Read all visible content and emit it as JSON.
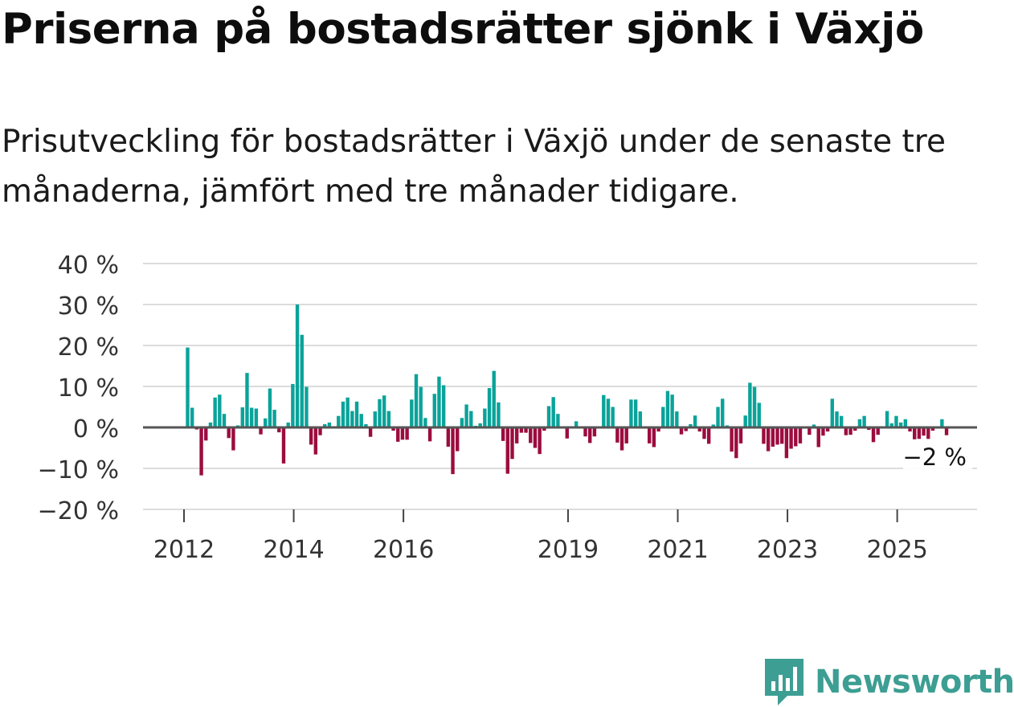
{
  "title": "Priserna på bostadsrätter sjönk i Växjö",
  "subtitle": "Prisutveckling för bostadsrätter i Växjö under de senaste tre månaderna, jämfört med tre månader tidigare.",
  "brand": {
    "name": "Newsworthy",
    "color": "#3d9e93"
  },
  "colors": {
    "positive": "#0aa39a",
    "negative": "#9c0c3e",
    "grid": "#dcdcdc",
    "zero": "#555555"
  },
  "chart_data": {
    "type": "bar",
    "title": "Priserna på bostadsrätter sjönk i Växjö",
    "xlabel": "",
    "ylabel": "",
    "ylim": [
      -20,
      40
    ],
    "y_ticks": [
      {
        "value": 40,
        "label": "40 %"
      },
      {
        "value": 30,
        "label": "30 %"
      },
      {
        "value": 20,
        "label": "20 %"
      },
      {
        "value": 10,
        "label": "10 %"
      },
      {
        "value": 0,
        "label": "0 %"
      },
      {
        "value": -10,
        "label": "−10 %"
      },
      {
        "value": -20,
        "label": "−20 %"
      }
    ],
    "x_start": "2012-01",
    "x_ticks": [
      {
        "index": 0,
        "label": "2012"
      },
      {
        "index": 24,
        "label": "2014"
      },
      {
        "index": 48,
        "label": "2016"
      },
      {
        "index": 84,
        "label": "2019"
      },
      {
        "index": 108,
        "label": "2021"
      },
      {
        "index": 132,
        "label": "2023"
      },
      {
        "index": 156,
        "label": "2025"
      }
    ],
    "last_value_label": "−2 %",
    "values": [
      19.5,
      4.8,
      -0.5,
      -11.7,
      -3.2,
      1.2,
      7.3,
      8.0,
      3.3,
      -2.6,
      -5.6,
      0.5,
      4.9,
      13.3,
      4.8,
      4.6,
      -1.7,
      2.2,
      9.5,
      4.3,
      -1.2,
      -8.8,
      1.2,
      10.6,
      30.0,
      22.6,
      9.9,
      -4.2,
      -6.6,
      -1.9,
      0.8,
      1.2,
      0.2,
      2.8,
      6.3,
      7.3,
      4.0,
      6.3,
      3.3,
      0.8,
      -2.3,
      3.9,
      6.9,
      7.8,
      4.0,
      -0.8,
      -3.5,
      -3.0,
      -3.0,
      6.8,
      13.0,
      9.9,
      2.3,
      -3.4,
      8.2,
      12.4,
      10.3,
      -4.7,
      -11.4,
      -5.8,
      2.3,
      5.6,
      4.0,
      0.4,
      1.0,
      4.6,
      9.6,
      13.8,
      6.1,
      -3.3,
      -11.3,
      -7.7,
      -3.9,
      -1.3,
      -1.3,
      -3.8,
      -5.0,
      -6.5,
      -0.8,
      5.2,
      7.4,
      3.3,
      -0.2,
      -2.7,
      0.3,
      1.5,
      -0.2,
      -2.2,
      -3.8,
      -2.2,
      0.1,
      7.9,
      7.0,
      5.0,
      -3.7,
      -5.6,
      -3.9,
      6.8,
      6.8,
      3.9,
      -0.3,
      -3.9,
      -4.8,
      -1.0,
      5.0,
      8.9,
      8.0,
      3.9,
      -1.7,
      -0.9,
      0.8,
      2.9,
      -1.0,
      -2.8,
      -4.0,
      0.7,
      5.0,
      7.0,
      0.5,
      -5.9,
      -7.5,
      -3.9,
      2.9,
      10.9,
      9.9,
      6.0,
      -4.0,
      -5.8,
      -4.7,
      -4.2,
      -4.0,
      -7.5,
      -5.2,
      -4.6,
      -3.9,
      -0.3,
      -1.8,
      0.7,
      -4.8,
      -2.0,
      -1.0,
      7.0,
      3.9,
      2.8,
      -1.9,
      -1.8,
      -0.8,
      2.0,
      2.8,
      -0.6,
      -3.6,
      -1.8,
      0.1,
      4.0,
      1.0,
      2.8,
      1.2,
      2.0,
      -1.0,
      -2.9,
      -2.8,
      -2.0,
      -2.8,
      -0.8,
      -0.3,
      2.0,
      -1.9
    ]
  }
}
